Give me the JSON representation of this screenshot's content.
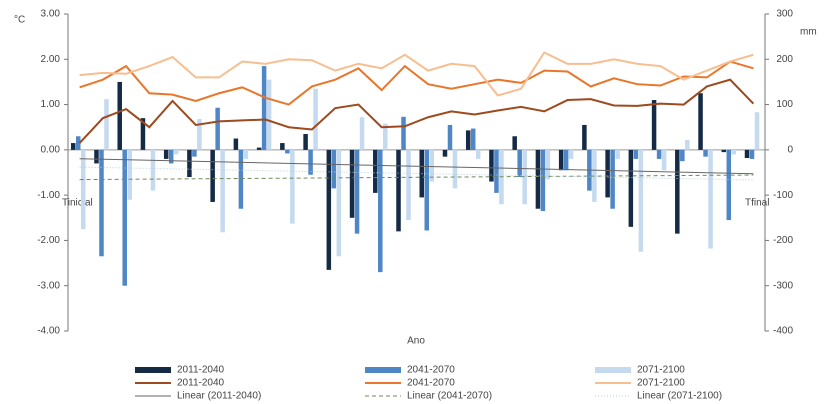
{
  "chart_data": {
    "type": "bar",
    "y_label": "°C",
    "y2_label": "mm",
    "x_label": "Ano",
    "annotations": [
      "Tinicial",
      "Tfinal"
    ],
    "categories": [
      null,
      null,
      null,
      null,
      null,
      null,
      null,
      null,
      null,
      null,
      null,
      null,
      null,
      null,
      null,
      null,
      null,
      null,
      null,
      null,
      null,
      null,
      null,
      null,
      null,
      null,
      null,
      null,
      null,
      null
    ],
    "ylim": [
      -4,
      3
    ],
    "yticks": [
      {
        "value": 3,
        "label": "3.00"
      },
      {
        "value": 2,
        "label": "2.00"
      },
      {
        "value": 1,
        "label": "1.00"
      },
      {
        "value": 0,
        "label": "0.00"
      },
      {
        "value": -1,
        "label": "-1.00"
      },
      {
        "value": -2,
        "label": "-2.00"
      },
      {
        "value": -3,
        "label": "-3.00"
      },
      {
        "value": -4,
        "label": "-4.00"
      }
    ],
    "y2lim": [
      -400,
      300
    ],
    "y2ticks": [
      300,
      200,
      100,
      0,
      -100,
      -200,
      -300,
      -400
    ],
    "series": [
      {
        "name": "2011-2040",
        "type": "bar",
        "color": "#142a45",
        "values": [
          0.15,
          -0.3,
          1.5,
          0.7,
          -0.2,
          -0.6,
          -1.15,
          0.25,
          0.05,
          0.15,
          0.35,
          -2.65,
          -1.5,
          -0.95,
          -1.8,
          -1.05,
          -0.15,
          0.43,
          -0.7,
          0.3,
          -1.3,
          -0.45,
          0.55,
          -1.05,
          -1.7,
          1.1,
          -1.85,
          1.25,
          -0.05,
          -0.18
        ]
      },
      {
        "name": "2041-2070",
        "type": "bar",
        "color": "#4f86c6",
        "values": [
          0.3,
          -2.35,
          -3.0,
          0.0,
          -0.3,
          -0.15,
          0.93,
          -1.3,
          1.85,
          -0.08,
          -0.55,
          -0.85,
          -1.85,
          -2.7,
          0.73,
          -1.78,
          0.55,
          0.47,
          -0.95,
          -0.6,
          -1.35,
          -0.45,
          -0.9,
          -1.3,
          -0.2,
          -0.2,
          -0.25,
          -0.15,
          -1.55,
          -0.2
        ]
      },
      {
        "name": "2071-2100",
        "type": "bar",
        "color": "#c5d9ef",
        "values": [
          -1.75,
          1.12,
          -1.1,
          -0.9,
          -0.1,
          0.68,
          -1.82,
          -0.2,
          1.55,
          -1.63,
          1.35,
          -2.35,
          0.72,
          0.58,
          -1.55,
          -0.7,
          -0.85,
          -0.2,
          -1.2,
          -1.2,
          -0.65,
          -0.2,
          -1.15,
          -0.2,
          -2.25,
          -0.45,
          0.22,
          -2.18,
          -0.1,
          0.83
        ]
      },
      {
        "name": "2011-2040",
        "type": "line",
        "axis": "y2",
        "color": "#9c4a1e",
        "values": [
          15,
          70,
          90,
          50,
          108,
          55,
          63,
          65,
          67,
          50,
          45,
          92,
          100,
          50,
          52,
          72,
          85,
          78,
          87,
          95,
          85,
          110,
          112,
          98,
          97,
          102,
          100,
          140,
          155,
          102
        ]
      },
      {
        "name": "2041-2070",
        "type": "line",
        "axis": "y2",
        "color": "#e8762b",
        "values": [
          138,
          155,
          185,
          125,
          122,
          108,
          125,
          138,
          115,
          100,
          140,
          155,
          180,
          132,
          185,
          145,
          135,
          145,
          155,
          148,
          175,
          173,
          140,
          158,
          145,
          142,
          162,
          160,
          195,
          180
        ]
      },
      {
        "name": "2071-2100",
        "type": "line",
        "axis": "y2",
        "color": "#f7be8f",
        "values": [
          165,
          170,
          168,
          185,
          205,
          160,
          160,
          195,
          190,
          200,
          198,
          175,
          190,
          180,
          210,
          175,
          190,
          185,
          120,
          135,
          215,
          190,
          190,
          200,
          190,
          185,
          155,
          175,
          195,
          210
        ]
      }
    ],
    "trendlines": [
      {
        "name": "Linear (2011-2040)",
        "color": "#666666",
        "dash": "solid"
      },
      {
        "name": "Linear (2041-2070)",
        "color": "#6e8a5a",
        "dash": "dashed"
      },
      {
        "name": "Linear (2071-2100)",
        "color": "#b8c8dc",
        "dash": "dotted"
      }
    ]
  }
}
